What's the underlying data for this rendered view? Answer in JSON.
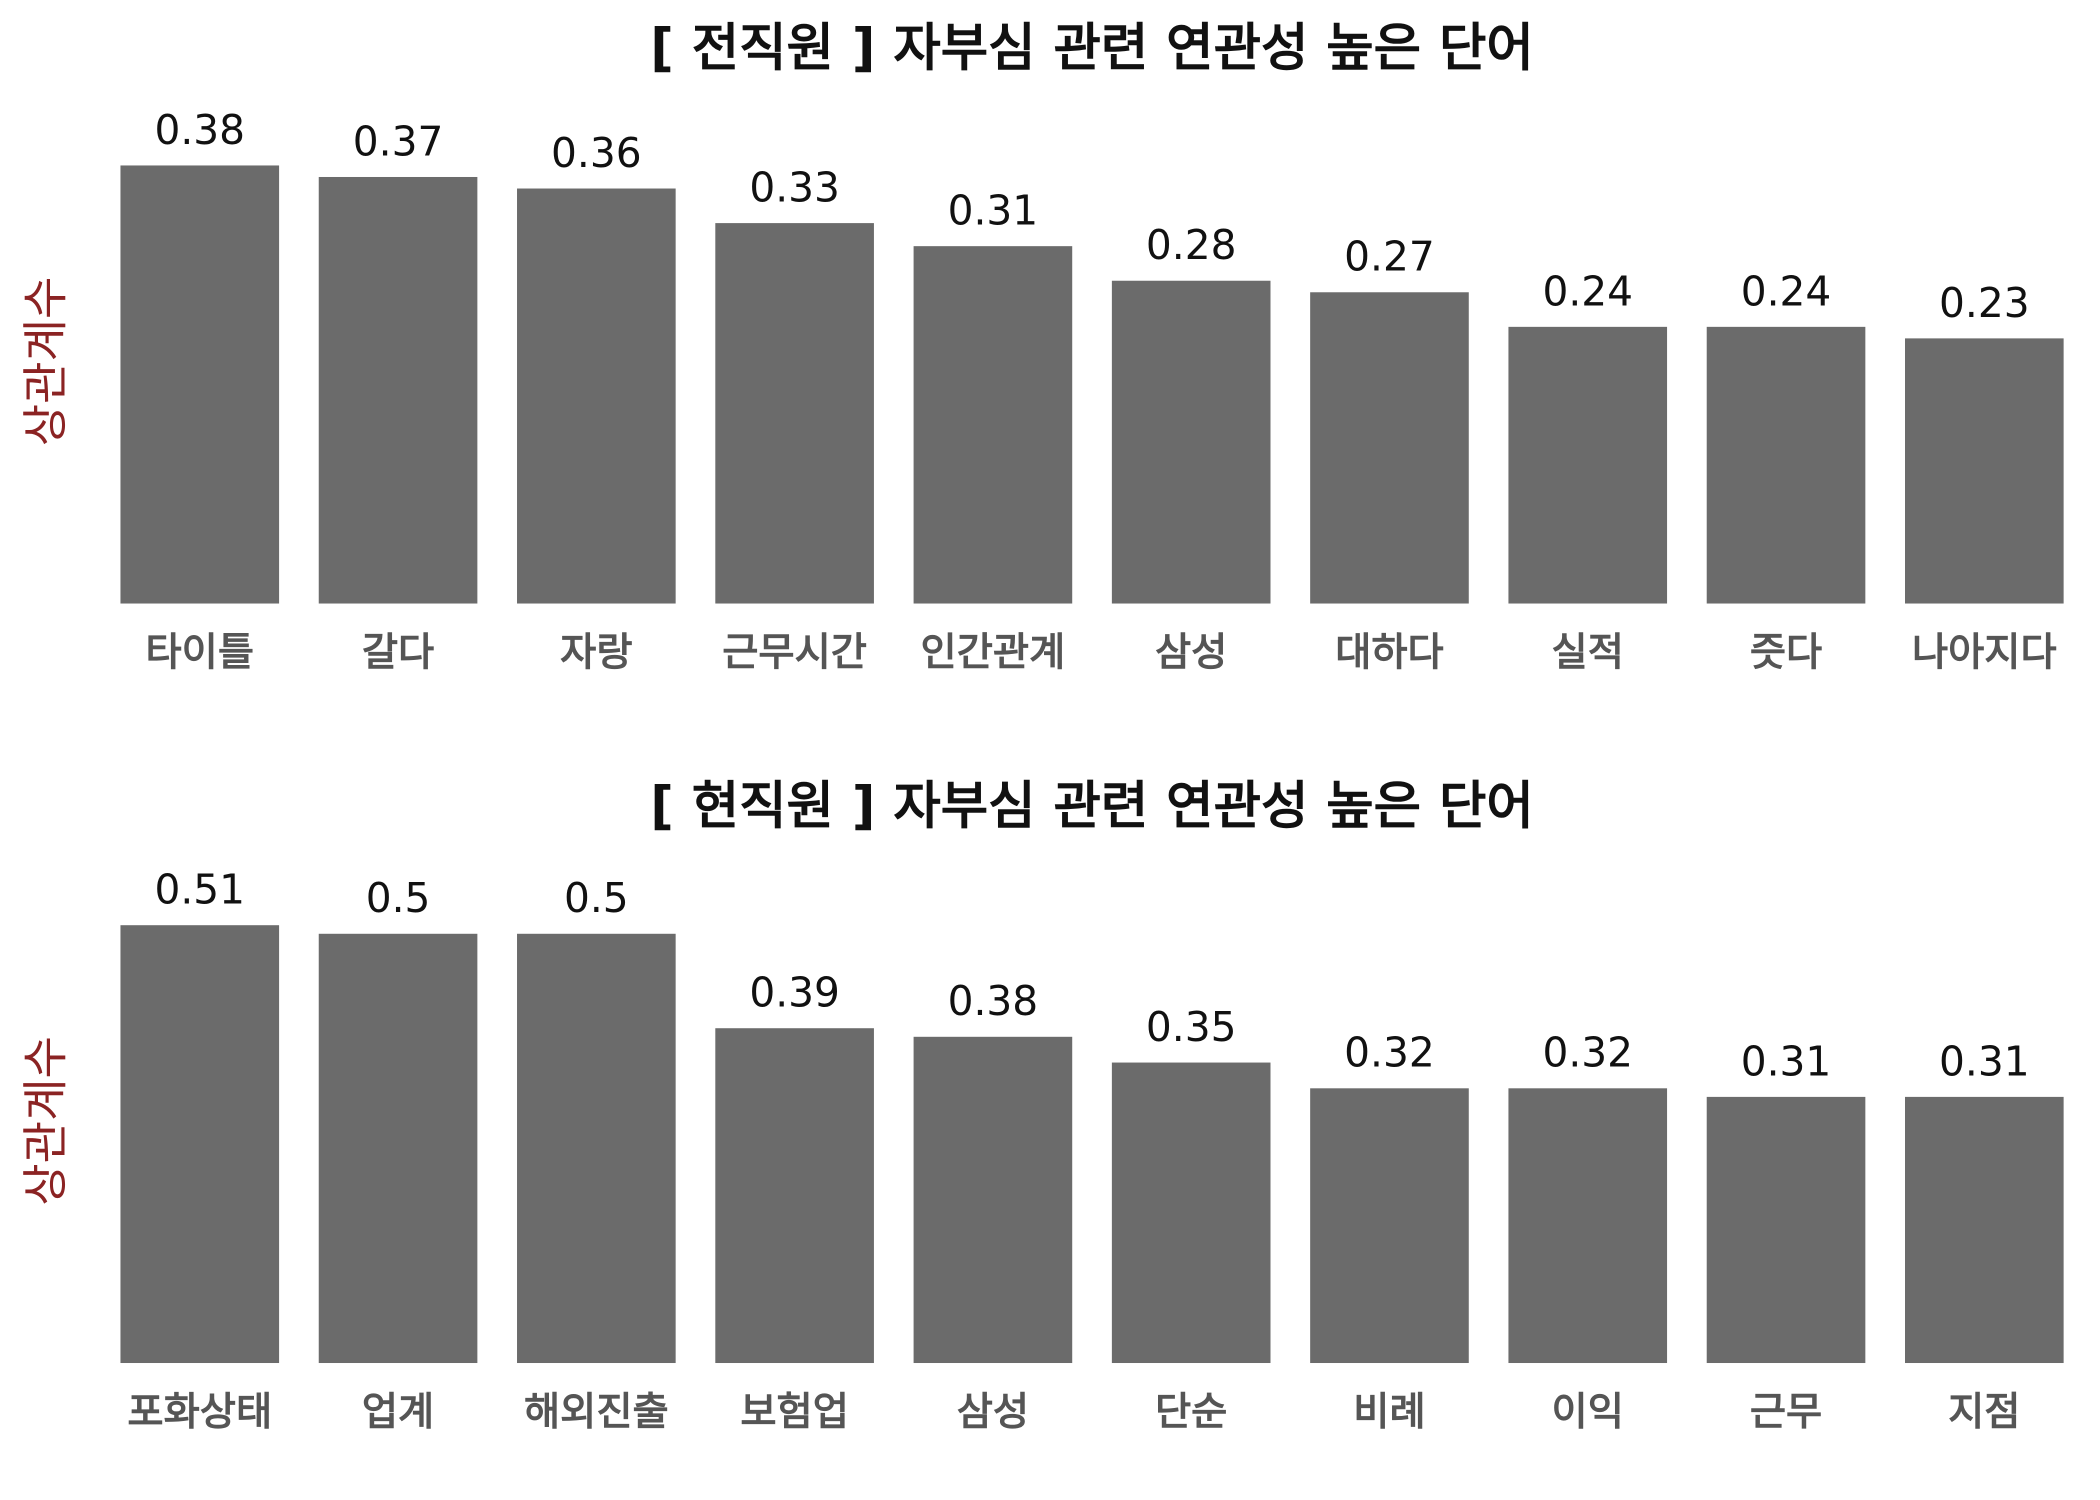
{
  "chart_data": [
    {
      "type": "bar",
      "title": "[ 전직원 ] 자부심 관련 연관성 높은 단어",
      "y_label": "상관계수",
      "categories": [
        "타이틀",
        "갈다",
        "자랑",
        "근무시간",
        "인간관계",
        "삼성",
        "대하다",
        "실적",
        "즛다",
        "나아지다"
      ],
      "values": [
        0.38,
        0.37,
        0.36,
        0.33,
        0.31,
        0.28,
        0.27,
        0.24,
        0.24,
        0.23
      ],
      "color": "#6b6b6b",
      "ylim": [
        0,
        0.42
      ]
    },
    {
      "type": "bar",
      "title": "[ 현직원 ] 자부심 관련 연관성 높은 단어",
      "y_label": "상관계수",
      "categories": [
        "포화상태",
        "업계",
        "해외진출",
        "보험업",
        "삼성",
        "단순",
        "비례",
        "이익",
        "근무",
        "지점"
      ],
      "values": [
        0.51,
        0.5,
        0.5,
        0.39,
        0.38,
        0.35,
        0.32,
        0.32,
        0.31,
        0.31
      ],
      "color": "#6b6b6b",
      "ylim": [
        0,
        0.564
      ]
    }
  ]
}
